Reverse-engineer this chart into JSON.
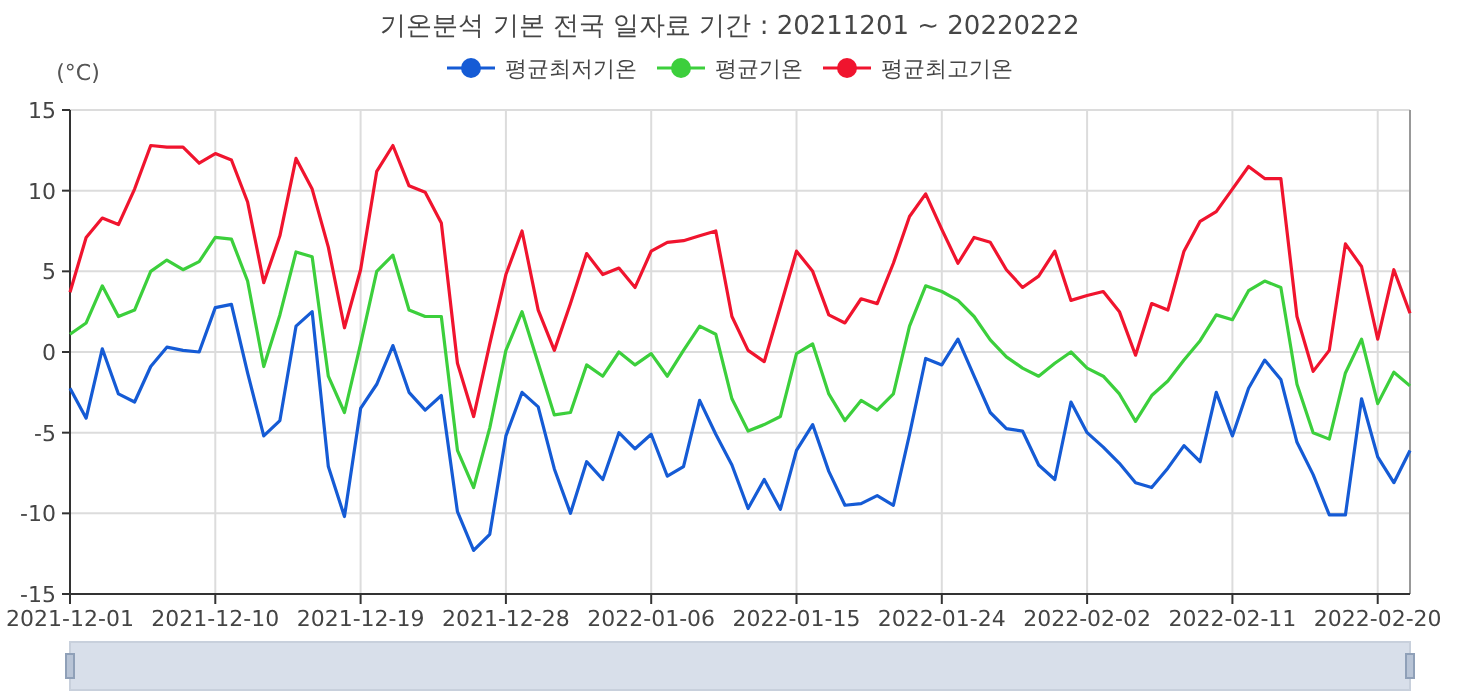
{
  "chart_data": {
    "type": "line",
    "title": "기온분석 기본 전국 일자료 기간 : 20211201 ~ 20220222",
    "ylabel": "(°C)",
    "legend": "top",
    "grid": true,
    "x": [
      "2021-12-01",
      "2021-12-02",
      "2021-12-03",
      "2021-12-04",
      "2021-12-05",
      "2021-12-06",
      "2021-12-07",
      "2021-12-08",
      "2021-12-09",
      "2021-12-10",
      "2021-12-11",
      "2021-12-12",
      "2021-12-13",
      "2021-12-14",
      "2021-12-15",
      "2021-12-16",
      "2021-12-17",
      "2021-12-18",
      "2021-12-19",
      "2021-12-20",
      "2021-12-21",
      "2021-12-22",
      "2021-12-23",
      "2021-12-24",
      "2021-12-25",
      "2021-12-26",
      "2021-12-27",
      "2021-12-28",
      "2021-12-29",
      "2021-12-30",
      "2021-12-31",
      "2022-01-01",
      "2022-01-02",
      "2022-01-03",
      "2022-01-04",
      "2022-01-05",
      "2022-01-06",
      "2022-01-07",
      "2022-01-08",
      "2022-01-09",
      "2022-01-10",
      "2022-01-11",
      "2022-01-12",
      "2022-01-13",
      "2022-01-14",
      "2022-01-15",
      "2022-01-16",
      "2022-01-17",
      "2022-01-18",
      "2022-01-19",
      "2022-01-20",
      "2022-01-21",
      "2022-01-22",
      "2022-01-23",
      "2022-01-24",
      "2022-01-25",
      "2022-01-26",
      "2022-01-27",
      "2022-01-28",
      "2022-01-29",
      "2022-01-30",
      "2022-01-31",
      "2022-02-01",
      "2022-02-02",
      "2022-02-03",
      "2022-02-04",
      "2022-02-05",
      "2022-02-06",
      "2022-02-07",
      "2022-02-08",
      "2022-02-09",
      "2022-02-10",
      "2022-02-11",
      "2022-02-12",
      "2022-02-13",
      "2022-02-14",
      "2022-02-15",
      "2022-02-16",
      "2022-02-17",
      "2022-02-18",
      "2022-02-19",
      "2022-02-20",
      "2022-02-21",
      "2022-02-22"
    ],
    "xlim": [
      "2021-12-01",
      "2022-02-22"
    ],
    "xticks": [
      "2021-12-01",
      "2021-12-10",
      "2021-12-19",
      "2021-12-28",
      "2022-01-06",
      "2022-01-15",
      "2022-01-24",
      "2022-02-02",
      "2022-02-11",
      "2022-02-20"
    ],
    "ylim": [
      -15,
      15
    ],
    "yticks": [
      -15,
      -10,
      -5,
      0,
      5,
      10,
      15
    ],
    "series": [
      {
        "name": "평균최저기온",
        "color": "#155bd5",
        "values": [
          -2.25,
          -4.1,
          0.2,
          -2.6,
          -3.1,
          -0.9,
          0.3,
          0.1,
          0.0,
          2.75,
          2.95,
          -1.3,
          -5.2,
          -4.25,
          1.6,
          2.5,
          -7.1,
          -10.2,
          -3.5,
          -2.0,
          0.4,
          -2.5,
          -3.6,
          -2.7,
          -9.9,
          -12.3,
          -11.3,
          -5.2,
          -2.5,
          -3.4,
          -7.25,
          -10.0,
          -6.8,
          -7.9,
          -5.0,
          -6.0,
          -5.1,
          -7.7,
          -7.1,
          -3.0,
          -5.1,
          -7.0,
          -9.7,
          -7.9,
          -9.75,
          -6.1,
          -4.5,
          -7.4,
          -9.5,
          -9.4,
          -8.9,
          -9.5,
          -5.1,
          -0.4,
          -0.8,
          0.8,
          -1.5,
          -3.75,
          -4.75,
          -4.9,
          -7.0,
          -7.9,
          -3.1,
          -5.0,
          -5.9,
          -6.9,
          -8.1,
          -8.4,
          -7.2,
          -5.8,
          -6.8,
          -2.5,
          -5.2,
          -2.25,
          -0.5,
          -1.7,
          -5.6,
          -7.6,
          -10.1,
          -10.1,
          -2.9,
          -6.5,
          -8.1,
          -6.1
        ]
      },
      {
        "name": "평균기온",
        "color": "#3ccf3c",
        "values": [
          1.1,
          1.8,
          4.1,
          2.2,
          2.6,
          5.0,
          5.7,
          5.1,
          5.6,
          7.1,
          7.0,
          4.4,
          -0.9,
          2.3,
          6.2,
          5.9,
          -1.5,
          -3.75,
          0.5,
          5.0,
          6.0,
          2.6,
          2.2,
          2.2,
          -6.1,
          -8.4,
          -4.7,
          0.1,
          2.5,
          -0.7,
          -3.9,
          -3.75,
          -0.8,
          -1.5,
          0.0,
          -0.8,
          -0.1,
          -1.5,
          0.1,
          1.6,
          1.1,
          -2.9,
          -4.9,
          -4.5,
          -4.0,
          -0.1,
          0.5,
          -2.6,
          -4.25,
          -3.0,
          -3.6,
          -2.6,
          1.6,
          4.1,
          3.75,
          3.2,
          2.2,
          0.75,
          -0.3,
          -1.0,
          -1.5,
          -0.7,
          0.0,
          -1.0,
          -1.5,
          -2.6,
          -4.3,
          -2.7,
          -1.8,
          -0.5,
          0.7,
          2.3,
          2.0,
          3.8,
          4.4,
          4.0,
          -2.0,
          -5.0,
          -5.4,
          -1.3,
          0.8,
          -3.2,
          -1.25,
          -2.1
        ]
      },
      {
        "name": "평균최고기온",
        "color": "#f0142e",
        "values": [
          3.7,
          7.1,
          8.3,
          7.9,
          10.1,
          12.8,
          12.7,
          12.7,
          11.7,
          12.3,
          11.9,
          9.3,
          4.3,
          7.2,
          12.0,
          10.1,
          6.5,
          1.5,
          5.1,
          11.2,
          12.8,
          10.3,
          9.9,
          8.0,
          -0.7,
          -4.0,
          0.5,
          4.8,
          7.5,
          2.6,
          0.1,
          3.0,
          6.1,
          4.8,
          5.2,
          4.0,
          6.25,
          6.8,
          6.9,
          7.2,
          7.5,
          2.2,
          0.1,
          -0.6,
          2.8,
          6.25,
          5.0,
          2.3,
          1.8,
          3.3,
          3.0,
          5.5,
          8.4,
          9.8,
          7.6,
          5.5,
          7.1,
          6.8,
          5.1,
          4.0,
          4.7,
          6.25,
          3.2,
          3.5,
          3.75,
          2.5,
          -0.2,
          3.0,
          2.6,
          6.25,
          8.1,
          8.7,
          10.1,
          11.5,
          10.75,
          10.75,
          2.2,
          -1.2,
          0.1,
          6.7,
          5.3,
          0.8,
          5.1,
          2.4
        ]
      }
    ]
  }
}
